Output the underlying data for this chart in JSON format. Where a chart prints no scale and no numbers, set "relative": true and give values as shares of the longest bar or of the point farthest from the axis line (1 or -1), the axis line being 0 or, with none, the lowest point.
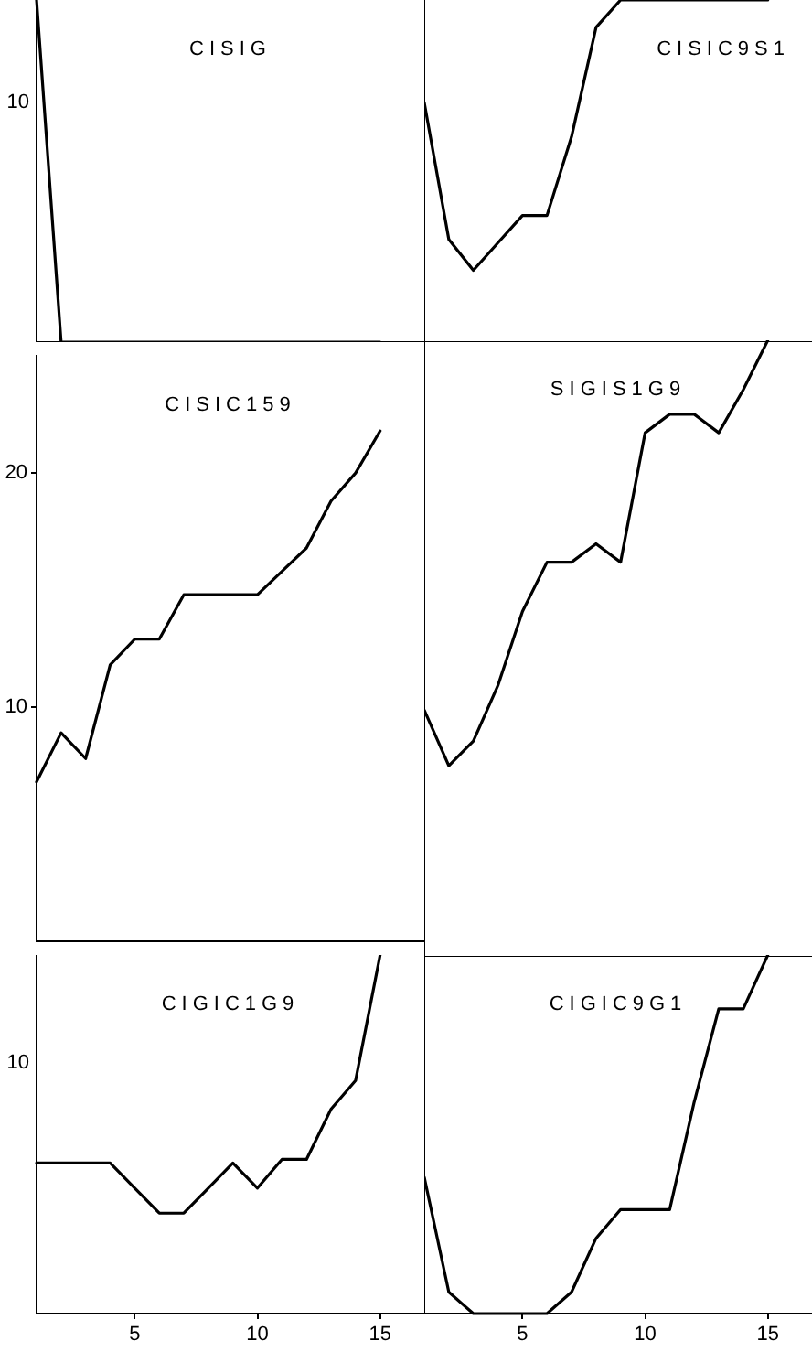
{
  "chart_data": [
    {
      "type": "line",
      "title": "CISIG",
      "x": [
        1,
        2,
        3,
        4,
        5,
        6,
        7,
        8,
        9,
        10,
        11,
        12,
        13,
        14,
        15
      ],
      "values": [
        1,
        0,
        0,
        0,
        0,
        0,
        0,
        0,
        0,
        0,
        0,
        0,
        0,
        0,
        0
      ],
      "color": "#000000",
      "xlim": [
        1,
        16.8
      ],
      "relative": true,
      "annotations": [
        "10"
      ],
      "tick_labels": false,
      "marker": "none"
    },
    {
      "type": "line",
      "title": "CISIC9S1",
      "x": [
        1,
        2,
        3,
        4,
        5,
        6,
        7,
        8,
        9,
        10,
        11,
        12,
        13,
        14,
        15
      ],
      "values": [
        0.7,
        0.3,
        0.21,
        0.29,
        0.37,
        0.37,
        0.6,
        0.92,
        1,
        1,
        1,
        1,
        1,
        1,
        1
      ],
      "color": "#000000",
      "xlim": [
        1,
        16.8
      ],
      "relative": true,
      "tick_labels": false,
      "marker": "none"
    },
    {
      "type": "line",
      "title": "CISIC159",
      "x": [
        1,
        2,
        3,
        4,
        5,
        6,
        7,
        8,
        9,
        10,
        11,
        12,
        13,
        14,
        15
      ],
      "values": [
        6.8,
        8.9,
        7.8,
        11.8,
        12.9,
        12.9,
        14.8,
        14.8,
        14.8,
        14.8,
        15.8,
        16.8,
        18.8,
        20,
        21.8
      ],
      "color": "#000000",
      "xlim": [
        1,
        16.8
      ],
      "ylim": [
        0,
        25
      ],
      "yticks": [
        10,
        20
      ],
      "tick_labels": "y",
      "marker": "none"
    },
    {
      "type": "line",
      "title": "SIGIS1G9",
      "x": [
        1,
        2,
        3,
        4,
        5,
        6,
        7,
        8,
        9,
        10,
        11,
        12,
        13,
        14,
        15
      ],
      "values": [
        0.4,
        0.31,
        0.35,
        0.44,
        0.56,
        0.64,
        0.64,
        0.67,
        0.64,
        0.85,
        0.88,
        0.88,
        0.85,
        0.92,
        1
      ],
      "color": "#000000",
      "xlim": [
        1,
        16.8
      ],
      "relative": true,
      "tick_labels": false,
      "marker": "none"
    },
    {
      "type": "line",
      "title": "CIGIC1G9",
      "x": [
        1,
        2,
        3,
        4,
        5,
        6,
        7,
        8,
        9,
        10,
        11,
        12,
        13,
        14,
        15
      ],
      "values": [
        0.42,
        0.42,
        0.42,
        0.42,
        0.35,
        0.28,
        0.28,
        0.35,
        0.42,
        0.35,
        0.43,
        0.43,
        0.57,
        0.65,
        1
      ],
      "color": "#000000",
      "xlim": [
        1,
        16.8
      ],
      "relative": true,
      "annotations": [
        "10"
      ],
      "xticks": [
        5,
        10,
        15
      ],
      "tick_labels": "x",
      "marker": "none"
    },
    {
      "type": "line",
      "title": "CIGIC9G1",
      "x": [
        1,
        2,
        3,
        4,
        5,
        6,
        7,
        8,
        9,
        10,
        11,
        12,
        13,
        14,
        15
      ],
      "values": [
        0.38,
        0.06,
        0,
        0,
        0,
        0,
        0.06,
        0.21,
        0.29,
        0.29,
        0.29,
        0.59,
        0.85,
        0.85,
        1
      ],
      "color": "#000000",
      "xlim": [
        1,
        16.8
      ],
      "relative": true,
      "xticks": [
        5,
        10,
        15
      ],
      "tick_labels": "x",
      "marker": "none"
    }
  ]
}
